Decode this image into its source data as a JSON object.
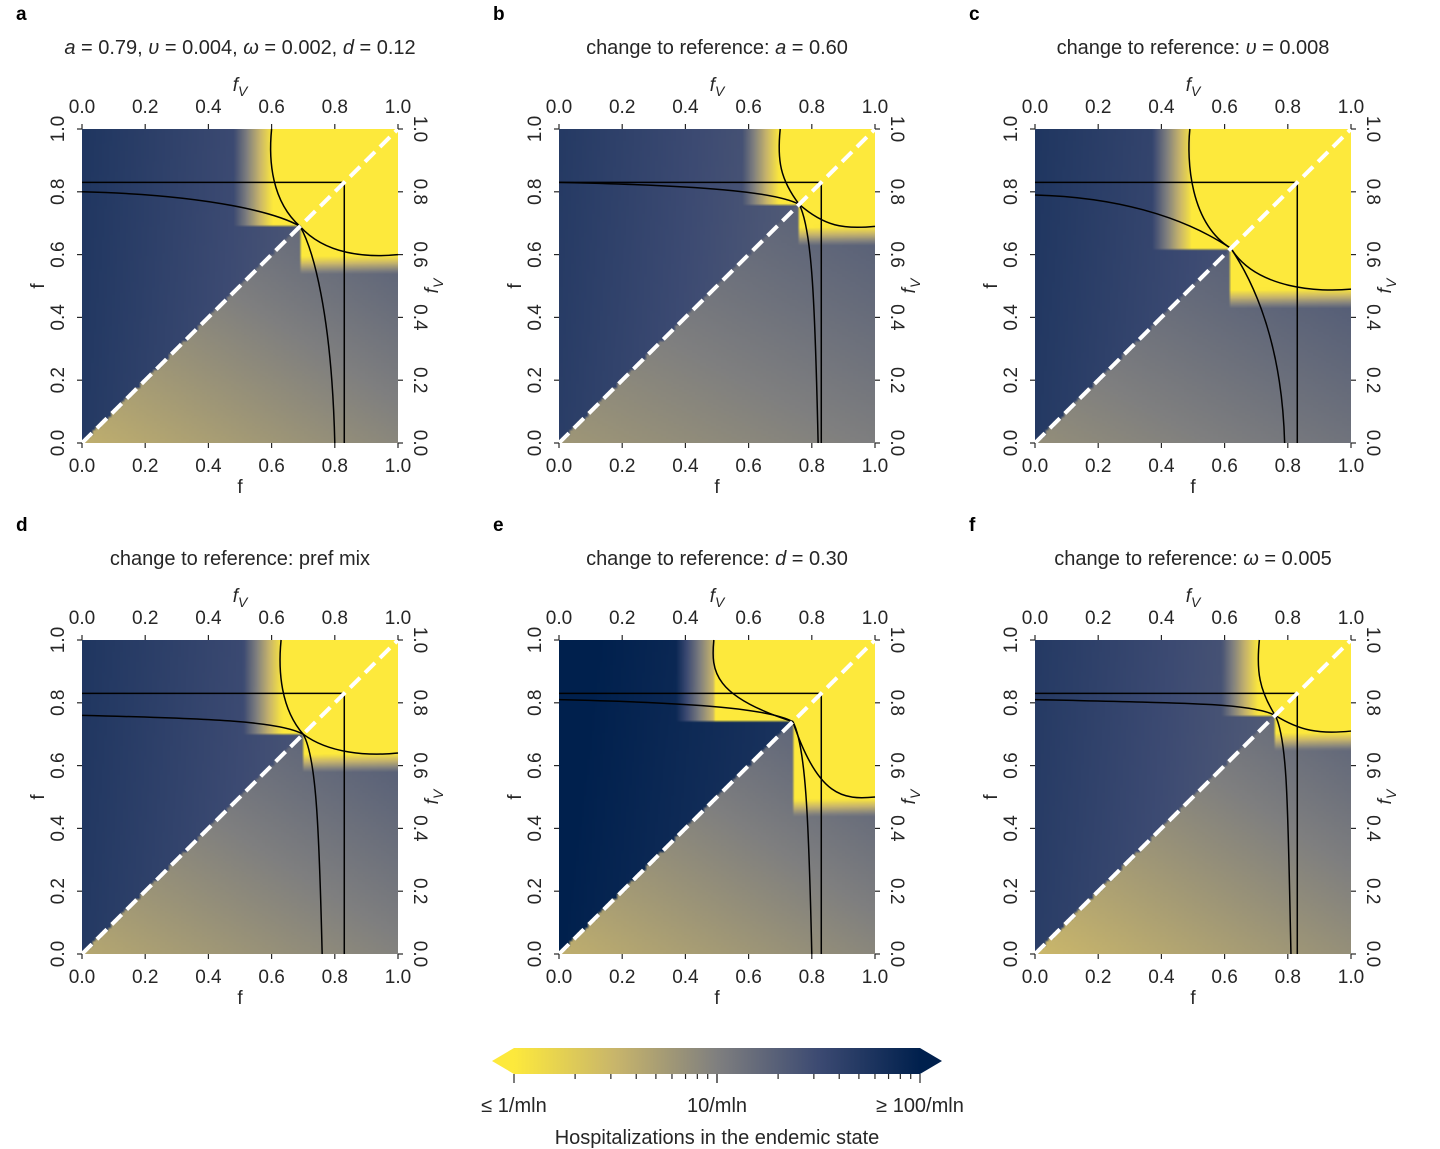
{
  "chart_data": {
    "type": "heatmap",
    "colormap": [
      "#fde93c",
      "#c8b56b",
      "#7f7f7f",
      "#3c4a72",
      "#00204d"
    ],
    "colorbar": {
      "label": "Hospitalizations in the endemic state",
      "ticks": [
        "≤ 1/mln",
        "10/mln",
        "≥ 100/mln"
      ],
      "scale": "log",
      "range": [
        1,
        100
      ],
      "extend": "both"
    },
    "x_ticks": [
      "0.0",
      "0.2",
      "0.4",
      "0.6",
      "0.8",
      "1.0"
    ],
    "y_ticks": [
      "0.0",
      "0.2",
      "0.4",
      "0.6",
      "0.8",
      "1.0"
    ],
    "xlabel_bottom": "f",
    "ylabel_left": "f",
    "xlabel_top": "f",
    "ylabel_right": "f",
    "label_subscript": "V",
    "xlim": [
      0,
      1
    ],
    "ylim": [
      0,
      1
    ],
    "diagonal": "dashed white line y = x",
    "reference_line_f": 0.83,
    "panels": [
      {
        "letter": "a",
        "title_parts": [
          {
            "t": "a",
            "i": true
          },
          {
            "t": " = 0.79, ",
            "i": false
          },
          {
            "t": "υ",
            "i": true
          },
          {
            "t": " = 0.004, ",
            "i": false
          },
          {
            "t": "ω",
            "i": true
          },
          {
            "t": " = 0.002, ",
            "i": false
          },
          {
            "t": "d",
            "i": true
          },
          {
            "t": " = 0.12",
            "i": false
          }
        ],
        "params": {
          "upper_base": 50,
          "upper_grad": 1.4,
          "lower_base": 6,
          "lower_grad": 1.6,
          "yellow_upper_start": 0.6,
          "yellow_lower_start": 0.6,
          "contour_v_at_f0": 0.8,
          "contour_f_at_v0": 0.8,
          "contour_meet": 0.69
        }
      },
      {
        "letter": "b",
        "title_parts": [
          {
            "t": "change to reference: ",
            "i": false
          },
          {
            "t": "a",
            "i": true
          },
          {
            "t": " = 0.60",
            "i": false
          }
        ],
        "params": {
          "upper_base": 45,
          "upper_grad": 1.3,
          "lower_base": 10,
          "lower_grad": 1.0,
          "yellow_upper_start": 0.7,
          "yellow_lower_start": 0.69,
          "contour_v_at_f0": 0.83,
          "contour_f_at_v0": 0.82,
          "contour_meet": 0.76
        }
      },
      {
        "letter": "c",
        "title_parts": [
          {
            "t": "change to reference: ",
            "i": false
          },
          {
            "t": "υ",
            "i": true
          },
          {
            "t": " = 0.008",
            "i": false
          }
        ],
        "params": {
          "upper_base": 50,
          "upper_grad": 1.3,
          "lower_base": 12,
          "lower_grad": 1.1,
          "yellow_upper_start": 0.49,
          "yellow_lower_start": 0.49,
          "contour_v_at_f0": 0.79,
          "contour_f_at_v0": 0.79,
          "contour_meet": 0.62
        }
      },
      {
        "letter": "d",
        "title_parts": [
          {
            "t": "change to reference: pref mix",
            "i": false
          }
        ],
        "params": {
          "upper_base": 50,
          "upper_grad": 1.3,
          "lower_base": 7,
          "lower_grad": 1.5,
          "yellow_upper_start": 0.63,
          "yellow_lower_start": 0.64,
          "contour_v_at_f0": 0.76,
          "contour_f_at_v0": 0.76,
          "contour_meet": 0.7
        }
      },
      {
        "letter": "e",
        "title_parts": [
          {
            "t": "change to reference: ",
            "i": false
          },
          {
            "t": "d",
            "i": true
          },
          {
            "t": " = 0.30",
            "i": false
          }
        ],
        "params": {
          "upper_base": 100,
          "upper_grad": 1.0,
          "lower_base": 6,
          "lower_grad": 1.6,
          "yellow_upper_start": 0.49,
          "yellow_lower_start": 0.5,
          "contour_v_at_f0": 0.81,
          "contour_f_at_v0": 0.8,
          "contour_meet": 0.74
        }
      },
      {
        "letter": "f",
        "title_parts": [
          {
            "t": "change to reference: ",
            "i": false
          },
          {
            "t": "ω",
            "i": true
          },
          {
            "t": " = 0.005",
            "i": false
          }
        ],
        "params": {
          "upper_base": 45,
          "upper_grad": 1.3,
          "lower_base": 5,
          "lower_grad": 1.6,
          "yellow_upper_start": 0.71,
          "yellow_lower_start": 0.71,
          "contour_v_at_f0": 0.81,
          "contour_f_at_v0": 0.81,
          "contour_meet": 0.76
        }
      }
    ]
  }
}
